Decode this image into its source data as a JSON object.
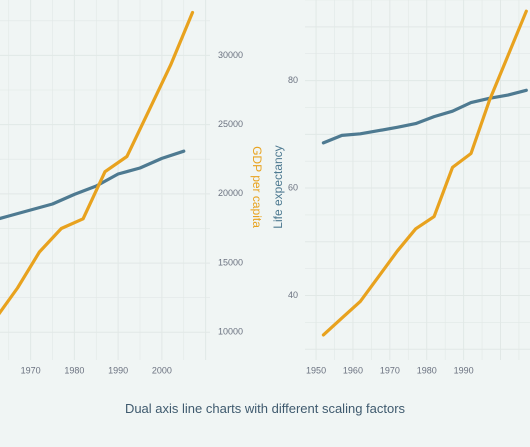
{
  "caption": "Dual axis line charts with different scaling factors",
  "colors": {
    "background": "#f0f5f4",
    "grid": "#e1e8e6",
    "life": "#4e7a91",
    "gdp": "#e8a21e",
    "tick": "#6b7280"
  },
  "chart_data": [
    {
      "type": "line",
      "xlabel": "",
      "x_ticks": [
        "1970",
        "1980",
        "1990",
        "2000"
      ],
      "xlim": [
        1963,
        2011
      ],
      "y_left": {
        "label": "",
        "lim": [
          58,
          88
        ],
        "ticks": []
      },
      "y_right": {
        "label": "GDP per capita",
        "lim": [
          8000,
          34000
        ],
        "ticks": [
          "10000",
          "15000",
          "20000",
          "25000",
          "30000"
        ]
      },
      "series": [
        {
          "axis": "left",
          "color": "#4e7a91",
          "x": [
            1960,
            1965,
            1970,
            1975,
            1980,
            1985,
            1990,
            1995,
            2000,
            2005
          ],
          "y": [
            69.5,
            70.0,
            70.5,
            71.0,
            71.8,
            72.5,
            73.5,
            74.0,
            74.8,
            75.4
          ]
        },
        {
          "axis": "right",
          "color": "#e8a21e",
          "x": [
            1962,
            1967,
            1972,
            1977,
            1982,
            1987,
            1992,
            1997,
            2002,
            2007
          ],
          "y": [
            11000,
            13200,
            15800,
            17500,
            18200,
            21600,
            22700,
            26000,
            29300,
            33100
          ]
        }
      ]
    },
    {
      "type": "line",
      "xlabel": "",
      "x_ticks": [
        "1950",
        "1960",
        "1970",
        "1980",
        "1990"
      ],
      "xlim": [
        1947,
        2008
      ],
      "y_left": {
        "label": "Life expectancy",
        "lim": [
          28,
          95
        ],
        "ticks": [
          "40",
          "60",
          "80"
        ]
      },
      "y_right": {
        "label": "",
        "lim": [
          -4500,
          60000
        ],
        "ticks": []
      },
      "series": [
        {
          "axis": "left",
          "color": "#4e7a91",
          "x": [
            1952,
            1957,
            1962,
            1967,
            1972,
            1977,
            1982,
            1987,
            1992,
            1997,
            2002,
            2007
          ],
          "y": [
            68.4,
            69.8,
            70.1,
            70.7,
            71.3,
            72.0,
            73.3,
            74.3,
            75.9,
            76.7,
            77.3,
            78.2
          ]
        },
        {
          "axis": "right",
          "color": "#e8a21e",
          "x": [
            1952,
            1957,
            1962,
            1967,
            1972,
            1977,
            1982,
            1987,
            1992,
            1997,
            2002,
            2007
          ],
          "y": [
            0,
            3000,
            6000,
            10500,
            15000,
            19000,
            21200,
            30000,
            32500,
            42000,
            50000,
            58000
          ]
        }
      ]
    }
  ]
}
